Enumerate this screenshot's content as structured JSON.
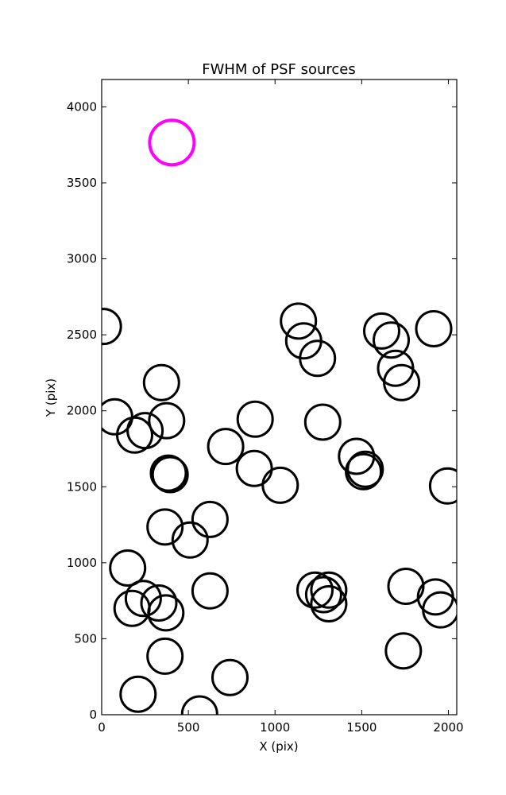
{
  "chart_data": {
    "type": "scatter",
    "title": "FWHM of PSF sources",
    "xlabel": "X (pix)",
    "ylabel": "Y (pix)",
    "xlim": [
      0,
      2048
    ],
    "ylim": [
      0,
      4180
    ],
    "x_ticks": [
      0,
      500,
      1000,
      1500,
      2000
    ],
    "y_ticks": [
      0,
      500,
      1000,
      1500,
      2000,
      2500,
      3000,
      3500,
      4000
    ],
    "grid": false,
    "legend": "none",
    "marker": "open-circle",
    "series": [
      {
        "color": "#000000",
        "points": [
          {
            "x": 10,
            "y": 2555
          },
          {
            "x": 75,
            "y": 1960
          },
          {
            "x": 190,
            "y": 1840
          },
          {
            "x": 250,
            "y": 1870
          },
          {
            "x": 345,
            "y": 2185
          },
          {
            "x": 375,
            "y": 1935
          },
          {
            "x": 385,
            "y": 1590
          },
          {
            "x": 395,
            "y": 1580
          },
          {
            "x": 365,
            "y": 1235
          },
          {
            "x": 510,
            "y": 1150
          },
          {
            "x": 625,
            "y": 1285
          },
          {
            "x": 625,
            "y": 815
          },
          {
            "x": 715,
            "y": 1765
          },
          {
            "x": 880,
            "y": 1620
          },
          {
            "x": 885,
            "y": 1945
          },
          {
            "x": 1030,
            "y": 1510
          },
          {
            "x": 1135,
            "y": 2590
          },
          {
            "x": 1165,
            "y": 2460
          },
          {
            "x": 1245,
            "y": 2345
          },
          {
            "x": 1275,
            "y": 1925
          },
          {
            "x": 1470,
            "y": 1700
          },
          {
            "x": 1510,
            "y": 1600
          },
          {
            "x": 1520,
            "y": 1615
          },
          {
            "x": 1615,
            "y": 2525
          },
          {
            "x": 1670,
            "y": 2465
          },
          {
            "x": 1695,
            "y": 2280
          },
          {
            "x": 1730,
            "y": 2185
          },
          {
            "x": 1915,
            "y": 2540
          },
          {
            "x": 1995,
            "y": 1505
          },
          {
            "x": 150,
            "y": 965
          },
          {
            "x": 175,
            "y": 700
          },
          {
            "x": 240,
            "y": 765
          },
          {
            "x": 330,
            "y": 735
          },
          {
            "x": 370,
            "y": 670
          },
          {
            "x": 365,
            "y": 385
          },
          {
            "x": 210,
            "y": 135
          },
          {
            "x": 565,
            "y": 5
          },
          {
            "x": 740,
            "y": 245
          },
          {
            "x": 1230,
            "y": 820
          },
          {
            "x": 1280,
            "y": 790
          },
          {
            "x": 1310,
            "y": 820
          },
          {
            "x": 1310,
            "y": 730
          },
          {
            "x": 1755,
            "y": 845
          },
          {
            "x": 1740,
            "y": 420
          },
          {
            "x": 1925,
            "y": 775
          },
          {
            "x": 1955,
            "y": 690
          }
        ]
      },
      {
        "color": "#ff00ff",
        "points": [
          {
            "x": 405,
            "y": 3765
          }
        ]
      }
    ]
  }
}
